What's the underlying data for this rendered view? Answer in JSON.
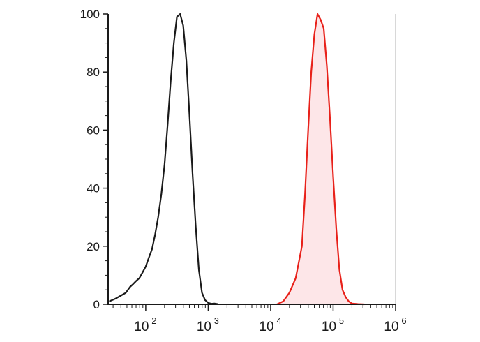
{
  "chart_data": {
    "type": "area",
    "title": "",
    "xlabel": "",
    "ylabel": "",
    "x_scale": "log",
    "xlim": [
      25,
      1000000
    ],
    "ylim": [
      0,
      100
    ],
    "grid": false,
    "legend": "none",
    "y_ticks": [
      "0",
      "20",
      "40",
      "60",
      "80",
      "100"
    ],
    "x_ticks": [
      {
        "base": "10",
        "exp": "2",
        "value": 100
      },
      {
        "base": "10",
        "exp": "3",
        "value": 1000
      },
      {
        "base": "10",
        "exp": "4",
        "value": 10000
      },
      {
        "base": "10",
        "exp": "5",
        "value": 100000
      },
      {
        "base": "10",
        "exp": "6",
        "value": 1000000
      }
    ],
    "series": [
      {
        "color": "#1a1a1a",
        "fill": "none",
        "x": [
          26,
          33,
          40,
          48,
          56,
          63,
          70,
          79,
          89,
          100,
          112,
          126,
          141,
          158,
          178,
          200,
          224,
          251,
          282,
          316,
          355,
          398,
          447,
          501,
          562,
          631,
          708,
          794,
          891,
          1000,
          1122,
          1259,
          1413
        ],
        "y": [
          1,
          2,
          3,
          4,
          6,
          7,
          8,
          9,
          11,
          13,
          16,
          19,
          24,
          30,
          38,
          48,
          62,
          77,
          90,
          99,
          100,
          96,
          84,
          65,
          45,
          27,
          12,
          4,
          1.5,
          0.5,
          0.2,
          0.3,
          0.1
        ]
      },
      {
        "color": "#e8211a",
        "fill": "#fde6e8",
        "x": [
          12589,
          15849,
          19953,
          25119,
          31623,
          35481,
          39811,
          44668,
          50119,
          56234,
          63096,
          70795,
          79433,
          89125,
          100000,
          112202,
          125893,
          141254,
          158489,
          177828,
          199526,
          251189,
          316228
        ],
        "y": [
          0,
          1,
          4,
          9,
          20,
          38,
          60,
          80,
          93,
          100,
          98,
          95,
          82,
          64,
          44,
          26,
          12,
          5,
          2.5,
          1,
          0.3,
          0.1,
          0
        ]
      }
    ]
  }
}
